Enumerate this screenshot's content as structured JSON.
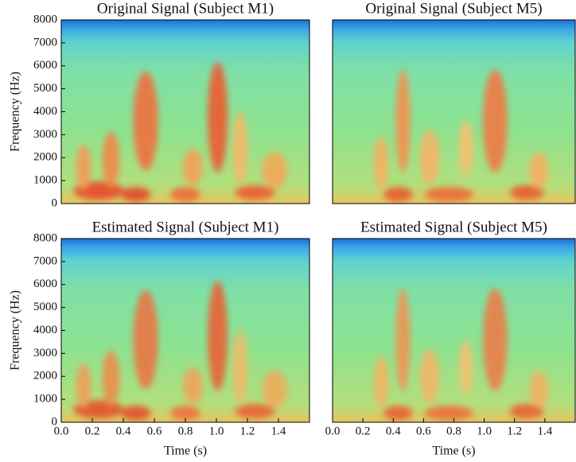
{
  "chart_data": [
    {
      "type": "spectrogram",
      "title": "Original Signal (Subject M1)",
      "ylabel": "Frequency (Hz)",
      "xlim": [
        0,
        1.6
      ],
      "ylim": [
        0,
        8000
      ],
      "yticks": [
        0,
        1000,
        2000,
        3000,
        4000,
        5000,
        6000,
        7000,
        8000
      ]
    },
    {
      "type": "spectrogram",
      "title": "Original Signal (Subject M5)",
      "xlim": [
        0,
        1.6
      ],
      "ylim": [
        0,
        8000
      ]
    },
    {
      "type": "spectrogram",
      "title": "Estimated Signal (Subject M1)",
      "ylabel": "Frequency (Hz)",
      "xlabel": "Time (s)",
      "xlim": [
        0,
        1.6
      ],
      "ylim": [
        0,
        8000
      ],
      "yticks": [
        0,
        1000,
        2000,
        3000,
        4000,
        5000,
        6000,
        7000,
        8000
      ],
      "xticks": [
        {
          "value": 0,
          "label": "0.0"
        },
        0.2,
        0.4,
        0.6,
        0.8,
        {
          "value": 1,
          "label": "1.0"
        },
        1.2,
        1.4
      ]
    },
    {
      "type": "spectrogram",
      "title": "Estimated Signal (Subject M5)",
      "xlabel": "Time (s)",
      "xlim": [
        0,
        1.6
      ],
      "ylim": [
        0,
        8000
      ],
      "xticks": [
        {
          "value": 0,
          "label": "0.0"
        },
        0.2,
        0.4,
        0.6,
        0.8,
        {
          "value": 1,
          "label": "1.0"
        },
        1.2,
        1.4
      ]
    }
  ]
}
